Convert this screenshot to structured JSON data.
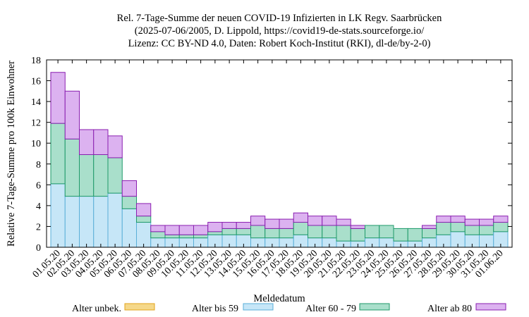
{
  "chart_data": {
    "type": "bar",
    "stacked": true,
    "title": [
      "Rel. 7-Tage-Summe der neuen COVID-19 Infizierten in LK Regv. Saarbrücken",
      "(2025-07-06/2005, D. Lippold, https://covid19-de-stats.sourceforge.io/",
      "Lizenz: CC BY-ND 4.0, Daten: Robert Koch-Institut (RKI), dl-de/by-2-0)"
    ],
    "xlabel": "Meldedatum",
    "ylabel": "Relative 7-Tage-Summe pro 100k Einwohner",
    "ylim": [
      0,
      18
    ],
    "yticks": [
      0,
      2,
      4,
      6,
      8,
      10,
      12,
      14,
      16,
      18
    ],
    "grid": false,
    "legend_position": "bottom",
    "categories": [
      "01.05.20",
      "02.05.20",
      "03.05.20",
      "04.05.20",
      "05.05.20",
      "06.05.20",
      "07.05.20",
      "08.05.20",
      "09.05.20",
      "10.05.20",
      "11.05.20",
      "12.05.20",
      "13.05.20",
      "14.05.20",
      "15.05.20",
      "16.05.20",
      "17.05.20",
      "18.05.20",
      "19.05.20",
      "20.05.20",
      "21.05.20",
      "22.05.20",
      "23.05.20",
      "24.05.20",
      "25.05.20",
      "26.05.20",
      "27.05.20",
      "28.05.20",
      "29.05.20",
      "30.05.20",
      "31.05.20",
      "01.06.20"
    ],
    "series": [
      {
        "name": "Alter unbek.",
        "color": "#f5d88a",
        "stroke": "#e2a31a",
        "values": [
          0,
          0,
          0,
          0,
          0,
          0,
          0,
          0,
          0,
          0,
          0,
          0,
          0,
          0,
          0,
          0,
          0,
          0,
          0,
          0,
          0,
          0,
          0,
          0,
          0,
          0,
          0,
          0,
          0,
          0,
          0,
          0
        ]
      },
      {
        "name": "Alter bis 59",
        "color": "#c6e6f7",
        "stroke": "#5aafd8",
        "values": [
          6.1,
          4.9,
          4.9,
          4.9,
          5.2,
          3.7,
          2.4,
          0.9,
          0.9,
          0.9,
          0.9,
          1.2,
          1.2,
          1.2,
          0.9,
          0.9,
          0.9,
          1.2,
          0.9,
          0.9,
          0.6,
          0.6,
          0.9,
          0.9,
          0.6,
          0.6,
          0.9,
          1.2,
          1.5,
          1.2,
          1.2,
          1.5
        ]
      },
      {
        "name": "Alter 60 - 79",
        "color": "#a9dfcb",
        "stroke": "#1f9a6a",
        "values": [
          5.8,
          5.5,
          4.0,
          4.0,
          3.4,
          1.2,
          0.6,
          0.6,
          0.3,
          0.3,
          0.3,
          0.3,
          0.6,
          0.6,
          1.2,
          0.9,
          0.9,
          1.2,
          1.2,
          1.2,
          1.5,
          1.2,
          1.2,
          1.2,
          1.2,
          1.2,
          0.9,
          1.2,
          0.9,
          0.9,
          0.9,
          0.9
        ]
      },
      {
        "name": "Alter ab 80",
        "color": "#dcb2f0",
        "stroke": "#8a1fb0",
        "values": [
          4.9,
          4.6,
          2.4,
          2.4,
          2.1,
          1.5,
          1.2,
          0.6,
          0.9,
          0.9,
          0.9,
          0.9,
          0.6,
          0.6,
          0.9,
          0.9,
          0.9,
          0.9,
          0.9,
          0.9,
          0.6,
          0.3,
          0,
          0,
          0,
          0,
          0.3,
          0.6,
          0.6,
          0.6,
          0.6,
          0.6
        ]
      }
    ]
  }
}
